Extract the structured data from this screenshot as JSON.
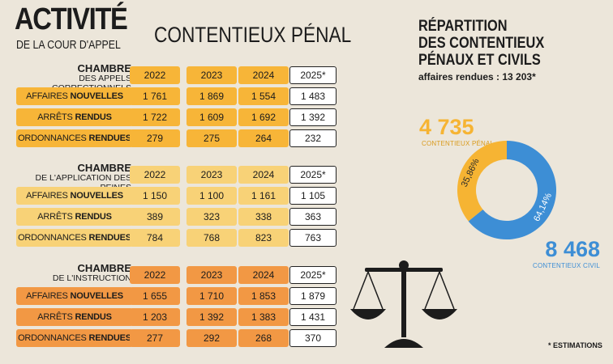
{
  "header": {
    "title": "ACTIVITÉ",
    "subtitle": "DE LA COUR D'APPEL",
    "section": "CONTENTIEUX PÉNAL"
  },
  "years": [
    "2022",
    "2023",
    "2024",
    "2025*"
  ],
  "chambers": [
    {
      "title": "CHAMBRE",
      "subtitle": "DES APPELS CORRECTIONNELS",
      "rows": [
        {
          "label_a": "AFFAIRES ",
          "label_b": "NOUVELLES",
          "values": [
            "1 761",
            "1 869",
            "1 554",
            "1 483"
          ]
        },
        {
          "label_a": "ARRÊTS ",
          "label_b": "RENDUS",
          "values": [
            "1 722",
            "1 609",
            "1 692",
            "1 392"
          ]
        },
        {
          "label_a": "ORDONNANCES ",
          "label_b": "RENDUES",
          "values": [
            "279",
            "275",
            "264",
            "232"
          ]
        }
      ]
    },
    {
      "title": "CHAMBRE",
      "subtitle": "DE L'APPLICATION DES PEINES",
      "rows": [
        {
          "label_a": "AFFAIRES ",
          "label_b": "NOUVELLES",
          "values": [
            "1 150",
            "1 100",
            "1 161",
            "1 105"
          ]
        },
        {
          "label_a": "ARRÊTS ",
          "label_b": "RENDUS",
          "values": [
            "389",
            "323",
            "338",
            "363"
          ]
        },
        {
          "label_a": "ORDONNANCES ",
          "label_b": "RENDUES",
          "values": [
            "784",
            "768",
            "823",
            "763"
          ]
        }
      ]
    },
    {
      "title": "CHAMBRE",
      "subtitle": "DE L'INSTRUCTION",
      "rows": [
        {
          "label_a": "AFFAIRES ",
          "label_b": "NOUVELLES",
          "values": [
            "1 655",
            "1 710",
            "1 853",
            "1 879"
          ]
        },
        {
          "label_a": "ARRÊTS ",
          "label_b": "RENDUS",
          "values": [
            "1 203",
            "1 392",
            "1 383",
            "1 431"
          ]
        },
        {
          "label_a": "ORDONNANCES ",
          "label_b": "RENDUES",
          "values": [
            "277",
            "292",
            "268",
            "370"
          ]
        }
      ]
    }
  ],
  "colors": {
    "chamber1": "#f7b538",
    "chamber2": "#f8d277",
    "chamber3": "#f29844",
    "penal": "#f6b433",
    "civil": "#3d8ed5"
  },
  "footnote": "* ESTIMATIONS",
  "chart_data": {
    "type": "pie",
    "title": "RÉPARTITION DES CONTENTIEUX PÉNAUX ET CIVILS",
    "title_lines": [
      "RÉPARTITION",
      "DES CONTENTIEUX",
      "PÉNAUX ET CIVILS"
    ],
    "subtitle": "affaires rendues : 13 203*",
    "slices": [
      {
        "name": "CONTENTIEUX PÉNAL",
        "value": 4735,
        "value_label": "4 735",
        "percent": 35.86,
        "percent_label": "35,86%"
      },
      {
        "name": "CONTENTIEUX CIVIL",
        "value": 8468,
        "value_label": "8 468",
        "percent": 64.14,
        "percent_label": "64,14%"
      }
    ]
  }
}
